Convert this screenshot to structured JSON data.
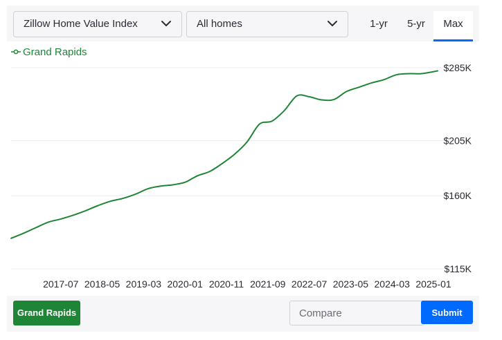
{
  "controls": {
    "index_select": "Zillow Home Value Index",
    "homes_select": "All homes",
    "range_tabs": [
      "1-yr",
      "5-yr",
      "Max"
    ],
    "active_range": "Max"
  },
  "footer": {
    "city_button": "Grand Rapids",
    "compare_placeholder": "Compare",
    "submit_label": "Submit"
  },
  "colors": {
    "series": "#1e8537",
    "accent": "#006aff"
  },
  "chart_data": {
    "type": "line",
    "title": "",
    "xlabel": "",
    "ylabel": "",
    "y_scale": "log",
    "ylim": [
      115000,
      285000
    ],
    "y_ticks": [
      115000,
      160000,
      205000,
      285000
    ],
    "y_tick_labels": [
      "$115K",
      "$160K",
      "$205K",
      "$285K"
    ],
    "x_tick_labels": [
      "2017-07",
      "2018-05",
      "2019-03",
      "2020-01",
      "2020-11",
      "2021-09",
      "2022-07",
      "2023-05",
      "2024-03",
      "2025-01"
    ],
    "x_range": [
      "2016-07",
      "2025-02"
    ],
    "grid": "horizontal",
    "legend": "top-left",
    "series": [
      {
        "name": "Grand Rapids",
        "x": [
          "2016-07",
          "2016-10",
          "2017-01",
          "2017-04",
          "2017-07",
          "2017-10",
          "2018-01",
          "2018-04",
          "2018-07",
          "2018-10",
          "2019-01",
          "2019-04",
          "2019-07",
          "2019-10",
          "2020-01",
          "2020-04",
          "2020-07",
          "2020-10",
          "2021-01",
          "2021-04",
          "2021-07",
          "2021-10",
          "2022-01",
          "2022-04",
          "2022-07",
          "2022-10",
          "2023-01",
          "2023-04",
          "2023-07",
          "2023-10",
          "2024-01",
          "2024-04",
          "2024-07",
          "2024-10",
          "2025-01",
          "2025-02"
        ],
        "y": [
          132000,
          135000,
          138500,
          142000,
          144000,
          146500,
          149500,
          153000,
          156000,
          158000,
          161000,
          165000,
          167000,
          168000,
          170000,
          175000,
          178500,
          185000,
          193000,
          204000,
          221000,
          224000,
          235000,
          251000,
          250000,
          246500,
          247000,
          256000,
          261000,
          266000,
          270000,
          276000,
          277500,
          277500,
          280000,
          281000
        ]
      }
    ]
  }
}
